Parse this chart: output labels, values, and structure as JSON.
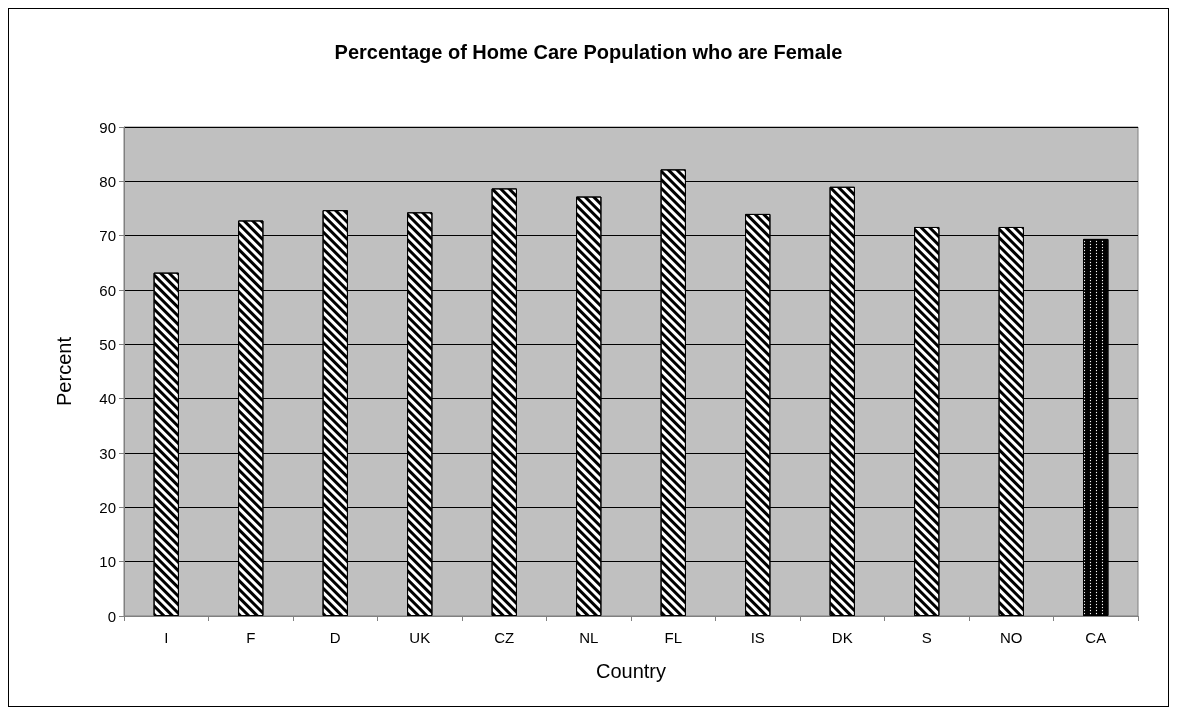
{
  "chart_data": {
    "type": "bar",
    "title": "Percentage of Home Care Population who are Female",
    "xlabel": "Country",
    "ylabel": "Percent",
    "categories": [
      "I",
      "F",
      "D",
      "UK",
      "CZ",
      "NL",
      "FL",
      "IS",
      "DK",
      "S",
      "NO",
      "CA"
    ],
    "values": [
      63.2,
      72.8,
      74.7,
      74.3,
      78.7,
      77.2,
      82.2,
      74.0,
      79.0,
      71.6,
      71.6,
      69.4
    ],
    "colors": [
      "#ffffff",
      "#ffffff",
      "#ffffff",
      "#ffffff",
      "#ffffff",
      "#ffffff",
      "#ffffff",
      "#ffffff",
      "#ffffff",
      "#ffffff",
      "#ffffff",
      "#000000"
    ],
    "ylim": [
      0,
      90
    ],
    "yticks": [
      0,
      10,
      20,
      30,
      40,
      50,
      60,
      70,
      80,
      90
    ],
    "grid": "y"
  }
}
